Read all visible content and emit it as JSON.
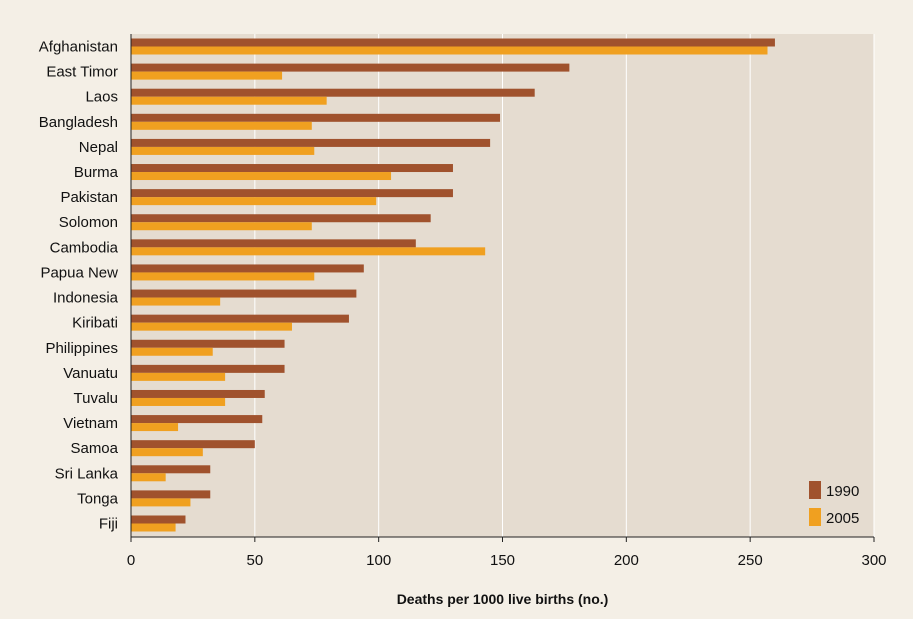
{
  "chart_data": {
    "type": "bar",
    "orientation": "horizontal",
    "title": "",
    "xlabel": "Deaths per 1000 live births (no.)",
    "ylabel": "",
    "xlim": [
      0,
      300
    ],
    "xticks": [
      0,
      50,
      100,
      150,
      200,
      250,
      300
    ],
    "grid": true,
    "legend_position": "bottom-right",
    "categories": [
      "Afghanistan",
      "East Timor",
      "Laos",
      "Bangladesh",
      "Nepal",
      "Burma",
      "Pakistan",
      "Solomon",
      "Cambodia",
      "Papua New",
      "Indonesia",
      "Kiribati",
      "Philippines",
      "Vanuatu",
      "Tuvalu",
      "Vietnam",
      "Samoa",
      "Sri Lanka",
      "Tonga",
      "Fiji"
    ],
    "series": [
      {
        "name": "1990",
        "color": "#a0522d",
        "values": [
          260,
          177,
          163,
          149,
          145,
          130,
          130,
          121,
          115,
          94,
          91,
          88,
          62,
          62,
          54,
          53,
          50,
          32,
          32,
          22
        ]
      },
      {
        "name": "2005",
        "color": "#f0a020",
        "values": [
          257,
          61,
          79,
          73,
          74,
          105,
          99,
          73,
          143,
          74,
          36,
          65,
          33,
          38,
          38,
          19,
          29,
          14,
          24,
          18
        ]
      }
    ]
  },
  "colors": {
    "background": "#f4efe6",
    "plot_background": "#e5dcd0",
    "gridline": "#ffffff",
    "axis": "#222222"
  }
}
